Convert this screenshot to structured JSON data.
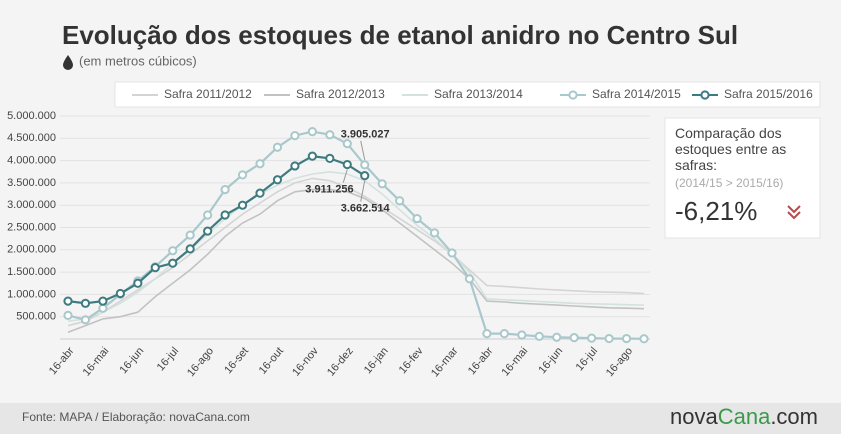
{
  "chart_data": {
    "type": "line",
    "title": "Evolução dos estoques de etanol anidro no Centro Sul",
    "subtitle": "(em metros cúbicos)",
    "categories": [
      "16-abr",
      null,
      "16-mai",
      null,
      "16-jun",
      null,
      "16-jul",
      null,
      "16-ago",
      null,
      "16-set",
      null,
      "16-out",
      null,
      "16-nov",
      null,
      "16-dez",
      null,
      "16-jan",
      null,
      "16-fev",
      null,
      "16-mar",
      null,
      "16-abr",
      null,
      "16-mai",
      null,
      "16-jun",
      null,
      "16-jul",
      null,
      "16-ago",
      null
    ],
    "ylim": [
      0,
      5000000
    ],
    "yticks": [
      {
        "value": 500000,
        "label": "500.000"
      },
      {
        "value": 1000000,
        "label": "1.000.000"
      },
      {
        "value": 1500000,
        "label": "1.500.000"
      },
      {
        "value": 2000000,
        "label": "2.000.000"
      },
      {
        "value": 2500000,
        "label": "2.500.000"
      },
      {
        "value": 3000000,
        "label": "3.000.000"
      },
      {
        "value": 3500000,
        "label": "3.500.000"
      },
      {
        "value": 4000000,
        "label": "4.000.000"
      },
      {
        "value": 4500000,
        "label": "4.500.000"
      },
      {
        "value": 5000000,
        "label": "5.000.000"
      }
    ],
    "grid": true,
    "series": [
      {
        "name": "Safra 2011/2012",
        "color": "#d4d4d4",
        "marker": false,
        "values": [
          300000,
          400000,
          600000,
          850000,
          1100000,
          1350000,
          1600000,
          1900000,
          2200000,
          2500000,
          2800000,
          3050000,
          3300000,
          3500000,
          3600000,
          3550000,
          3400000,
          3200000,
          2950000,
          2700000,
          2450000,
          2200000,
          1900000,
          1550000,
          1200000,
          1180000,
          1150000,
          1120000,
          1100000,
          1080000,
          1060000,
          1050000,
          1040000,
          1020000
        ]
      },
      {
        "name": "Safra 2012/2013",
        "color": "#c2c2c2",
        "marker": false,
        "values": [
          150000,
          300000,
          450000,
          500000,
          600000,
          950000,
          1250000,
          1550000,
          1900000,
          2300000,
          2600000,
          2800000,
          3100000,
          3300000,
          3350000,
          3350000,
          3300000,
          3150000,
          2900000,
          2600000,
          2300000,
          2000000,
          1700000,
          1350000,
          850000,
          830000,
          800000,
          780000,
          760000,
          740000,
          720000,
          700000,
          690000,
          680000
        ]
      },
      {
        "name": "Safra 2013/2014",
        "color": "#d2e2df",
        "marker": false,
        "values": [
          400000,
          450000,
          600000,
          800000,
          1050000,
          1350000,
          1700000,
          2000000,
          2350000,
          2700000,
          3000000,
          3250000,
          3450000,
          3600000,
          3700000,
          3750000,
          3700000,
          3550000,
          3250000,
          2900000,
          2550000,
          2250000,
          1900000,
          1500000,
          900000,
          880000,
          860000,
          840000,
          820000,
          800000,
          790000,
          780000,
          770000,
          760000
        ]
      },
      {
        "name": "Safra 2014/2015",
        "color": "#a9c8cb",
        "marker": true,
        "values": [
          530000,
          430000,
          690000,
          1000000,
          1300000,
          1620000,
          1980000,
          2330000,
          2780000,
          3350000,
          3680000,
          3930000,
          4300000,
          4560000,
          4650000,
          4580000,
          4380000,
          3905027,
          3480000,
          3100000,
          2700000,
          2380000,
          1930000,
          1350000,
          120000,
          120000,
          90000,
          60000,
          40000,
          30000,
          20000,
          10000,
          10000,
          5000
        ],
        "value_labels": [
          null,
          null,
          null,
          null,
          null,
          null,
          null,
          null,
          null,
          null,
          null,
          null,
          null,
          null,
          null,
          null,
          null,
          "3.905.027",
          null,
          null,
          null,
          null,
          null,
          null,
          null,
          null,
          null,
          null,
          null,
          null,
          null,
          null,
          null,
          null
        ]
      },
      {
        "name": "Safra 2015/2016",
        "color": "#3e7b81",
        "marker": true,
        "values": [
          850000,
          800000,
          850000,
          1020000,
          1250000,
          1600000,
          1700000,
          2020000,
          2420000,
          2780000,
          3000000,
          3270000,
          3570000,
          3880000,
          4100000,
          4050000,
          3911256,
          3662514,
          null,
          null,
          null,
          null,
          null,
          null,
          null,
          null,
          null,
          null,
          null,
          null,
          null,
          null,
          null,
          null
        ],
        "value_labels": [
          null,
          null,
          null,
          null,
          null,
          null,
          null,
          null,
          null,
          null,
          null,
          null,
          null,
          null,
          null,
          null,
          "3.911.256",
          "3.662.514",
          null,
          null,
          null,
          null,
          null,
          null,
          null,
          null,
          null,
          null,
          null,
          null,
          null,
          null,
          null,
          null
        ]
      }
    ]
  },
  "panel": {
    "title": "Comparação dos estoques entre as safras:",
    "note": "(2014/15 > 2015/16)",
    "value": "-6,21%"
  },
  "footer": {
    "source": "Fonte: MAPA / Elaboração:  novaCana.com",
    "logo": [
      "nova",
      "Cana",
      ".com"
    ]
  }
}
